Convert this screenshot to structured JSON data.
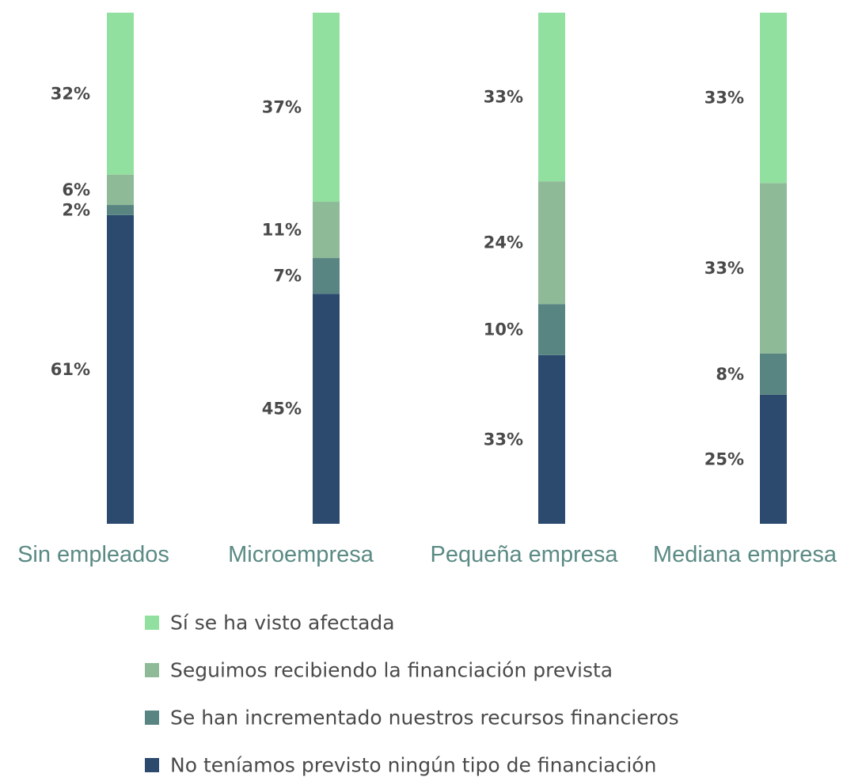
{
  "chart_data": {
    "type": "bar",
    "stacked": true,
    "normalized": true,
    "categories": [
      "Sin empleados",
      "Microempresa",
      "Pequeña empresa",
      "Mediana empresa"
    ],
    "series": [
      {
        "name": "No teníamos previsto ningún tipo de financiación",
        "color": "#2b4a6d",
        "values": [
          61,
          45,
          33,
          25
        ],
        "labels": [
          "61%",
          "45%",
          "33%",
          "25%"
        ]
      },
      {
        "name": "Se han incrementado nuestros recursos financieros",
        "color": "#588581",
        "values": [
          2,
          7,
          10,
          8
        ],
        "labels": [
          "2%",
          "7%",
          "10%",
          "8%"
        ]
      },
      {
        "name": "Seguimos recibiendo la financiación prevista",
        "color": "#8fba98",
        "values": [
          6,
          11,
          24,
          33
        ],
        "labels": [
          "6%",
          "11%",
          "24%",
          "33%"
        ]
      },
      {
        "name": "Sí se ha visto afectada",
        "color": "#92e09f",
        "values": [
          32,
          37,
          33,
          33
        ],
        "labels": [
          "32%",
          "37%",
          "33%",
          "33%"
        ]
      }
    ],
    "legend": {
      "position": "bottom",
      "order": [
        "Sí se ha visto afectada",
        "Seguimos recibiendo la financiación prevista",
        "Se han incrementado nuestros recursos financieros",
        "No teníamos previsto ningún tipo de financiación"
      ]
    },
    "grid": false,
    "title": "",
    "xlabel": "",
    "ylabel": ""
  }
}
